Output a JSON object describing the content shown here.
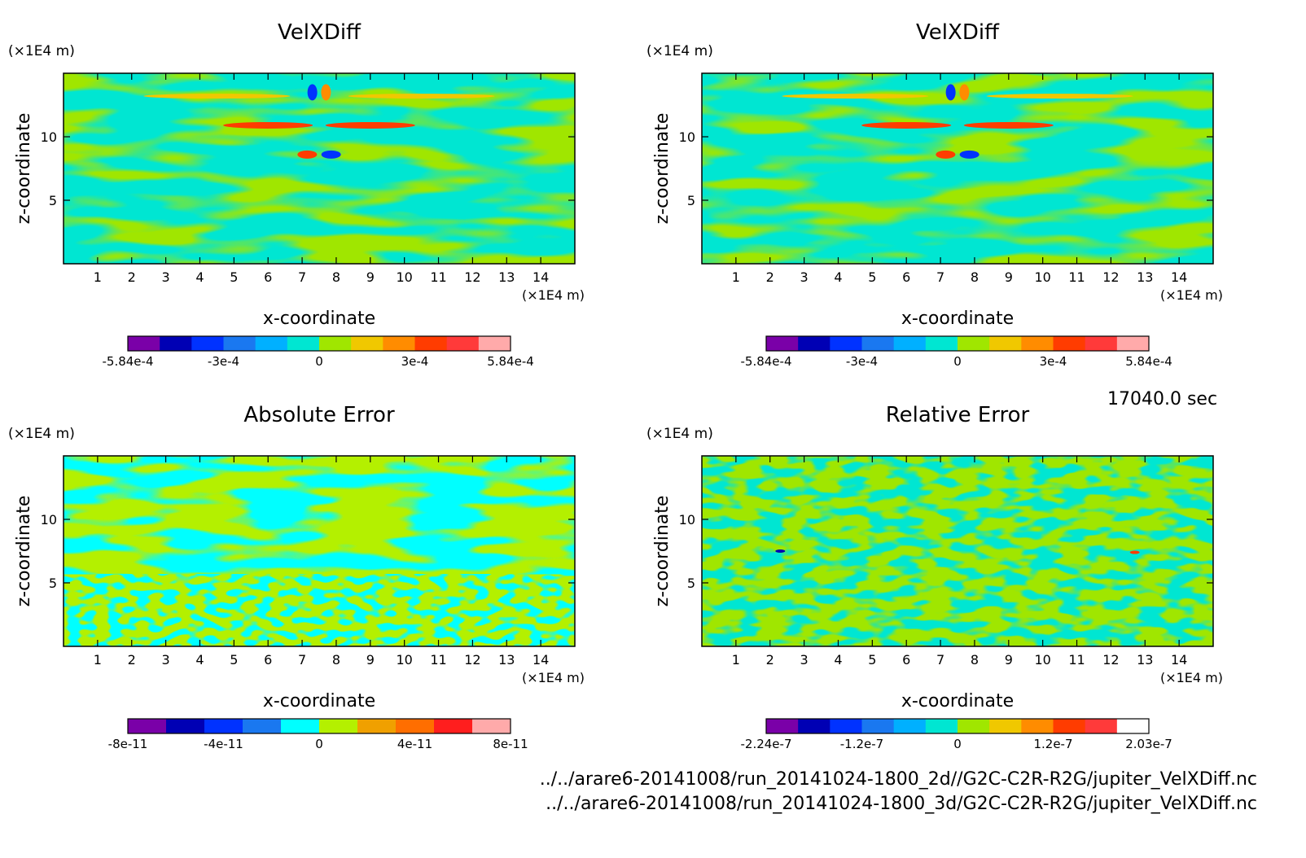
{
  "time_label": "17040.0 sec",
  "files": [
    "../../arare6-20141008/run_20141024-1800_2d//G2C-C2R-R2G/jupiter_VelXDiff.nc",
    "../../arare6-20141008/run_20141024-1800_3d/G2C-C2R-R2G/jupiter_VelXDiff.nc"
  ],
  "chart_data": [
    {
      "type": "heatmap",
      "title": "VelXDiff",
      "xlabel": "x-coordinate",
      "ylabel": "z-coordinate",
      "x_unit": "(×1E4 m)",
      "y_unit": "(×1E4 m)",
      "xlim": [
        0,
        15
      ],
      "ylim": [
        0,
        15
      ],
      "xticks": [
        "1",
        "2",
        "3",
        "4",
        "5",
        "6",
        "7",
        "8",
        "9",
        "10",
        "11",
        "12",
        "13",
        "14"
      ],
      "yticks": [
        "5",
        "10"
      ],
      "pattern": "veldiff",
      "colorbar": {
        "colors": [
          "#7a00a8",
          "#0000b4",
          "#0032ff",
          "#1a78f0",
          "#00b0ff",
          "#00e6d2",
          "#a0e600",
          "#f0c800",
          "#ff8c00",
          "#ff3c00",
          "#ff3a3a",
          "#ffaaaa"
        ],
        "labels": [
          "-5.84e-4",
          "-3e-4",
          "0",
          "3e-4",
          "5.84e-4"
        ]
      }
    },
    {
      "type": "heatmap",
      "title": "VelXDiff",
      "xlabel": "x-coordinate",
      "ylabel": "z-coordinate",
      "x_unit": "(×1E4 m)",
      "y_unit": "(×1E4 m)",
      "xlim": [
        0,
        15
      ],
      "ylim": [
        0,
        15
      ],
      "xticks": [
        "1",
        "2",
        "3",
        "4",
        "5",
        "6",
        "7",
        "8",
        "9",
        "10",
        "11",
        "12",
        "13",
        "14"
      ],
      "yticks": [
        "5",
        "10"
      ],
      "pattern": "veldiff",
      "colorbar": {
        "colors": [
          "#7a00a8",
          "#0000b4",
          "#0032ff",
          "#1a78f0",
          "#00b0ff",
          "#00e6d2",
          "#a0e600",
          "#f0c800",
          "#ff8c00",
          "#ff3c00",
          "#ff3a3a",
          "#ffaaaa"
        ],
        "labels": [
          "-5.84e-4",
          "-3e-4",
          "0",
          "3e-4",
          "5.84e-4"
        ]
      }
    },
    {
      "type": "heatmap",
      "title": "Absolute Error",
      "xlabel": "x-coordinate",
      "ylabel": "z-coordinate",
      "x_unit": "(×1E4 m)",
      "y_unit": "(×1E4 m)",
      "xlim": [
        0,
        15
      ],
      "ylim": [
        0,
        15
      ],
      "xticks": [
        "1",
        "2",
        "3",
        "4",
        "5",
        "6",
        "7",
        "8",
        "9",
        "10",
        "11",
        "12",
        "13",
        "14"
      ],
      "yticks": [
        "5",
        "10"
      ],
      "pattern": "abserr",
      "colorbar": {
        "colors": [
          "#7a00a8",
          "#0000b4",
          "#0032ff",
          "#1a78f0",
          "#00ffff",
          "#b4f000",
          "#f0a000",
          "#ff6e00",
          "#ff1e1e",
          "#ffaaaa"
        ],
        "labels": [
          "-8e-11",
          "-4e-11",
          "0",
          "4e-11",
          "8e-11"
        ]
      }
    },
    {
      "type": "heatmap",
      "title": "Relative Error",
      "xlabel": "x-coordinate",
      "ylabel": "z-coordinate",
      "x_unit": "(×1E4 m)",
      "y_unit": "(×1E4 m)",
      "xlim": [
        0,
        15
      ],
      "ylim": [
        0,
        15
      ],
      "xticks": [
        "1",
        "2",
        "3",
        "4",
        "5",
        "6",
        "7",
        "8",
        "9",
        "10",
        "11",
        "12",
        "13",
        "14"
      ],
      "yticks": [
        "5",
        "10"
      ],
      "pattern": "relerr",
      "colorbar": {
        "colors": [
          "#7a00a8",
          "#0000b4",
          "#0032ff",
          "#1a78f0",
          "#00b0ff",
          "#00e6d2",
          "#a0e600",
          "#f0c800",
          "#ff8c00",
          "#ff3c00",
          "#ff3a3a",
          "#ffffff"
        ],
        "labels": [
          "-2.24e-7",
          "-1.2e-7",
          "0",
          "1.2e-7",
          "2.03e-7"
        ]
      }
    }
  ]
}
